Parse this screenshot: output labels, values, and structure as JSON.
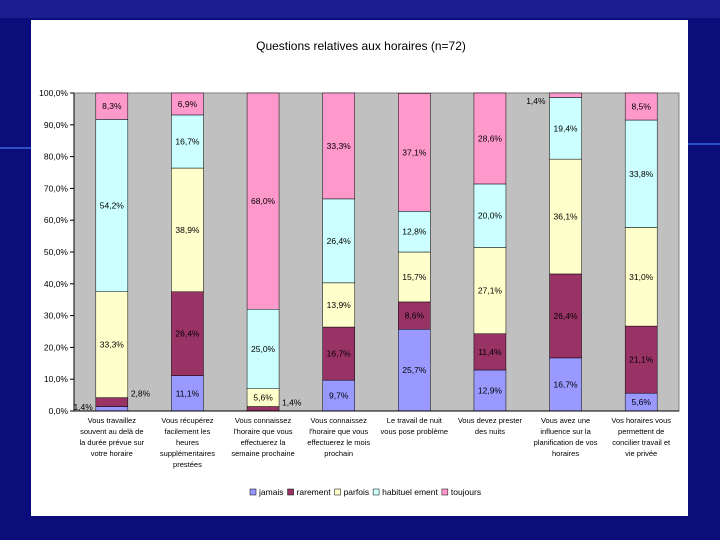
{
  "chart_data": {
    "type": "bar",
    "stacked": true,
    "title": "Questions relatives aux horaires (n=72)",
    "ylim": [
      0,
      100
    ],
    "y_tick_labels": [
      "0,0%",
      "10,0%",
      "20,0%",
      "30,0%",
      "40,0%",
      "50,0%",
      "60,0%",
      "70,0%",
      "80,0%",
      "90,0%",
      "100,0%"
    ],
    "categories": [
      [
        "Vous travaillez",
        "souvent au delà de",
        "la durée prévue sur",
        "votre horaire"
      ],
      [
        "Vous récupérez",
        "facilement les",
        "heures",
        "supplémentaires",
        "prestées"
      ],
      [
        "Vous connaissez",
        "l'horaire que vous",
        "effectuerez la",
        "semaine prochaine"
      ],
      [
        "Vous connaissez",
        "l'horaire que vous",
        "effectuerez le mois",
        "prochain"
      ],
      [
        "Le travail de nuit",
        "vous pose problème"
      ],
      [
        "Vous devez prester",
        "des nuits"
      ],
      [
        "Vous avez une",
        "influence sur la",
        "planification de vos",
        "horaires"
      ],
      [
        "Vos horaires vous",
        "permettent de",
        "concilier travail et",
        "vie privée"
      ]
    ],
    "series": [
      {
        "name": "jamais",
        "color": "#9999ff",
        "values": [
          1.4,
          11.1,
          0,
          9.7,
          25.7,
          12.9,
          16.7,
          5.6
        ],
        "labels": [
          "1,4%",
          "11,1%",
          "",
          "9,7%",
          "25,7%",
          "12,9%",
          "16,7%",
          "5,6%"
        ]
      },
      {
        "name": "rarement",
        "color": "#993366",
        "values": [
          2.8,
          26.4,
          1.4,
          16.7,
          8.6,
          11.4,
          26.4,
          21.1
        ],
        "labels": [
          "2,8%",
          "26,4%",
          "1,4%",
          "16,7%",
          "8,6%",
          "11,4%",
          "26,4%",
          "21,1%"
        ]
      },
      {
        "name": "parfois",
        "color": "#ffffcc",
        "values": [
          33.3,
          38.9,
          5.6,
          13.9,
          15.7,
          27.1,
          36.1,
          31.0
        ],
        "labels": [
          "33,3%",
          "38,9%",
          "5,6%",
          "13,9%",
          "15,7%",
          "27,1%",
          "36,1%",
          "31,0%"
        ]
      },
      {
        "name": "habituellement",
        "color": "#ccffff",
        "values": [
          54.2,
          16.7,
          25.0,
          26.4,
          12.8,
          20.0,
          19.4,
          33.8
        ],
        "labels": [
          "54,2%",
          "16,7%",
          "25,0%",
          "26,4%",
          "12,8%",
          "20,0%",
          "19,4%",
          "33,8%"
        ]
      },
      {
        "name": "toujours",
        "color": "#ff99cc",
        "values": [
          8.3,
          6.9,
          68.0,
          33.3,
          37.1,
          28.6,
          1.4,
          8.5
        ],
        "labels": [
          "8,3%",
          "6,9%",
          "68,0%",
          "33,3%",
          "37,1%",
          "28,6%",
          "1,4%",
          "8,5%"
        ]
      }
    ],
    "legend": [
      "jamais",
      "rarement",
      "parfois",
      "habituellement",
      "toujours"
    ],
    "legend_display": [
      "jamais",
      "rarement",
      "parfois",
      "habituel ement",
      "toujours"
    ],
    "legend_position": "bottom",
    "plot_background": "#c0c0c0"
  }
}
